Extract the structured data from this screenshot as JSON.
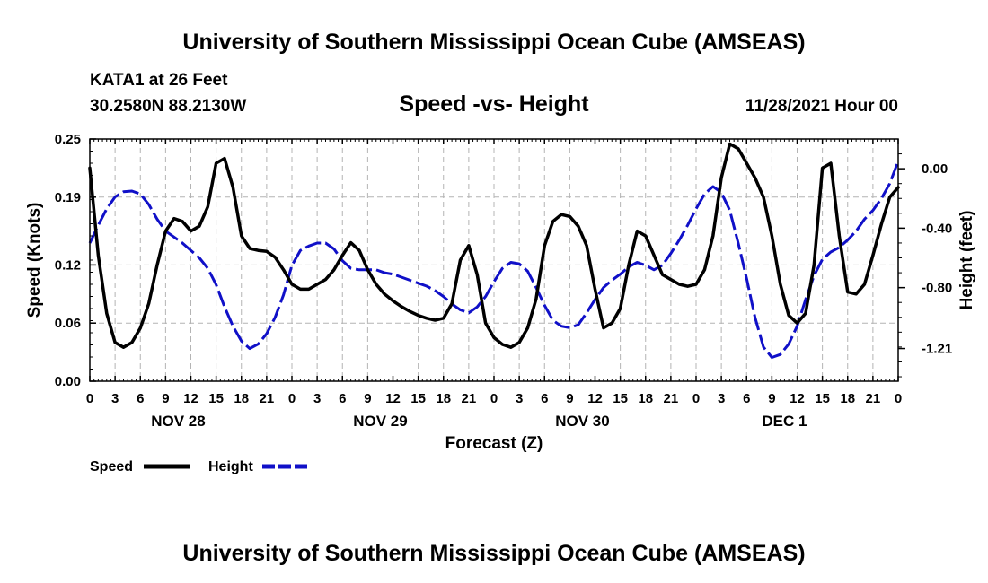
{
  "header": {
    "title": "University of Southern Mississippi Ocean Cube (AMSEAS)",
    "station": "KATA1 at 26 Feet",
    "coords": "30.2580N  88.2130W",
    "subtitle": "Speed -vs- Height",
    "datetime": "11/28/2021 Hour 00",
    "footer_title": "University of Southern Mississippi Ocean Cube (AMSEAS)"
  },
  "legend": {
    "speed_label": "Speed",
    "height_label": "Height"
  },
  "colors": {
    "speed": "#000000",
    "height": "#1010c8",
    "grid": "#b4b4b4"
  },
  "chart_data": {
    "type": "line",
    "title": "Speed -vs- Height",
    "xlabel": "Forecast (Z)",
    "ylabel": "Speed (Knots)",
    "y2label": "Height (feet)",
    "xlim": [
      0,
      96
    ],
    "ylim": [
      0,
      0.25
    ],
    "y2lim": [
      -1.43,
      0.2
    ],
    "yticks": [
      0,
      0.06,
      0.12,
      0.19,
      0.25
    ],
    "yticklabels": [
      "0.00",
      "0.06",
      "0.12",
      "0.19",
      "0.25"
    ],
    "y2ticks": [
      0.0,
      -0.4,
      -0.8,
      -1.21
    ],
    "y2ticklabels": [
      "0.00",
      "-0.40",
      "-0.80",
      "-1.21"
    ],
    "xticks": [
      0,
      3,
      6,
      9,
      12,
      15,
      18,
      21,
      24,
      27,
      30,
      33,
      36,
      39,
      42,
      45,
      48,
      51,
      54,
      57,
      60,
      63,
      66,
      69,
      72,
      75,
      78,
      81,
      84,
      87,
      90,
      93,
      96
    ],
    "xticklabels": [
      "0",
      "3",
      "6",
      "9",
      "12",
      "15",
      "18",
      "21",
      "0",
      "3",
      "6",
      "9",
      "12",
      "15",
      "18",
      "21",
      "0",
      "3",
      "6",
      "9",
      "12",
      "15",
      "18",
      "21",
      "0",
      "3",
      "6",
      "9",
      "12",
      "15",
      "18",
      "21",
      "0"
    ],
    "day_labels": [
      {
        "label": "NOV 28",
        "hour": 10.5
      },
      {
        "label": "NOV 29",
        "hour": 34.5
      },
      {
        "label": "NOV 30",
        "hour": 58.5
      },
      {
        "label": "DEC 1",
        "hour": 82.5
      }
    ],
    "grid": true,
    "series": [
      {
        "name": "Speed",
        "axis": "left",
        "style": "solid",
        "x": [
          0,
          1,
          2,
          3,
          4,
          5,
          6,
          7,
          8,
          9,
          10,
          11,
          12,
          13,
          14,
          15,
          16,
          17,
          18,
          19,
          20,
          21,
          22,
          23,
          24,
          25,
          26,
          27,
          28,
          29,
          30,
          31,
          32,
          33,
          34,
          35,
          36,
          37,
          38,
          39,
          40,
          41,
          42,
          43,
          44,
          45,
          46,
          47,
          48,
          49,
          50,
          51,
          52,
          53,
          54,
          55,
          56,
          57,
          58,
          59,
          60,
          61,
          62,
          63,
          64,
          65,
          66,
          67,
          68,
          69,
          70,
          71,
          72,
          73,
          74,
          75,
          76,
          77,
          78,
          79,
          80,
          81,
          82,
          83,
          84,
          85,
          86,
          87,
          88,
          89,
          90,
          91,
          92,
          93,
          94,
          95,
          96
        ],
        "values": [
          0.22,
          0.13,
          0.07,
          0.04,
          0.035,
          0.04,
          0.055,
          0.08,
          0.12,
          0.155,
          0.168,
          0.165,
          0.155,
          0.16,
          0.18,
          0.225,
          0.23,
          0.2,
          0.15,
          0.137,
          0.135,
          0.134,
          0.128,
          0.115,
          0.1,
          0.095,
          0.095,
          0.1,
          0.105,
          0.115,
          0.13,
          0.143,
          0.135,
          0.115,
          0.1,
          0.09,
          0.083,
          0.077,
          0.072,
          0.068,
          0.065,
          0.063,
          0.065,
          0.08,
          0.125,
          0.14,
          0.11,
          0.06,
          0.045,
          0.038,
          0.035,
          0.04,
          0.055,
          0.085,
          0.14,
          0.165,
          0.172,
          0.17,
          0.16,
          0.14,
          0.095,
          0.055,
          0.06,
          0.075,
          0.12,
          0.155,
          0.15,
          0.13,
          0.11,
          0.105,
          0.1,
          0.098,
          0.1,
          0.115,
          0.15,
          0.21,
          0.245,
          0.24,
          0.225,
          0.21,
          0.19,
          0.15,
          0.1,
          0.068,
          0.06,
          0.07,
          0.12,
          0.22,
          0.225,
          0.15,
          0.092,
          0.09,
          0.1,
          0.13,
          0.162,
          0.19,
          0.2
        ]
      },
      {
        "name": "Height",
        "axis": "right",
        "style": "dashed",
        "x": [
          0,
          1,
          2,
          3,
          4,
          5,
          6,
          7,
          8,
          9,
          10,
          11,
          12,
          13,
          14,
          15,
          16,
          17,
          18,
          19,
          20,
          21,
          22,
          23,
          24,
          25,
          26,
          27,
          28,
          29,
          30,
          31,
          32,
          33,
          34,
          35,
          36,
          37,
          38,
          39,
          40,
          41,
          42,
          43,
          44,
          45,
          46,
          47,
          48,
          49,
          50,
          51,
          52,
          53,
          54,
          55,
          56,
          57,
          58,
          59,
          60,
          61,
          62,
          63,
          64,
          65,
          66,
          67,
          68,
          69,
          70,
          71,
          72,
          73,
          74,
          75,
          76,
          77,
          78,
          79,
          80,
          81,
          82,
          83,
          84,
          85,
          86,
          87,
          88,
          89,
          90,
          91,
          92,
          93,
          94,
          95,
          96
        ],
        "values": [
          -0.5,
          -0.38,
          -0.27,
          -0.19,
          -0.155,
          -0.15,
          -0.17,
          -0.24,
          -0.34,
          -0.42,
          -0.46,
          -0.5,
          -0.55,
          -0.6,
          -0.67,
          -0.78,
          -0.93,
          -1.06,
          -1.16,
          -1.21,
          -1.18,
          -1.11,
          -1.0,
          -0.85,
          -0.65,
          -0.55,
          -0.52,
          -0.5,
          -0.5,
          -0.54,
          -0.62,
          -0.67,
          -0.68,
          -0.68,
          -0.68,
          -0.7,
          -0.71,
          -0.73,
          -0.75,
          -0.77,
          -0.79,
          -0.82,
          -0.86,
          -0.91,
          -0.95,
          -0.97,
          -0.93,
          -0.86,
          -0.76,
          -0.67,
          -0.63,
          -0.64,
          -0.69,
          -0.8,
          -0.92,
          -1.02,
          -1.06,
          -1.07,
          -1.05,
          -0.97,
          -0.88,
          -0.8,
          -0.75,
          -0.71,
          -0.66,
          -0.63,
          -0.65,
          -0.68,
          -0.65,
          -0.57,
          -0.48,
          -0.38,
          -0.27,
          -0.17,
          -0.12,
          -0.16,
          -0.28,
          -0.5,
          -0.74,
          -1.0,
          -1.2,
          -1.27,
          -1.25,
          -1.18,
          -1.06,
          -0.88,
          -0.72,
          -0.61,
          -0.56,
          -0.53,
          -0.48,
          -0.42,
          -0.34,
          -0.28,
          -0.2,
          -0.1,
          0.05
        ]
      }
    ]
  }
}
